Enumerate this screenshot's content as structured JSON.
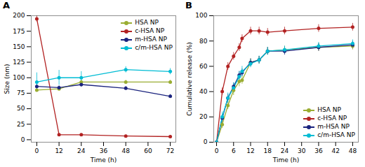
{
  "chart_data": [
    {
      "type": "line",
      "title": "A",
      "xlabel": "Time (h)",
      "ylabel": "Size (nm)",
      "x": [
        0,
        12,
        24,
        48,
        72
      ],
      "xlim": [
        -3,
        75
      ],
      "xticks": [
        0,
        12,
        24,
        36,
        48,
        60,
        72
      ],
      "ylim": [
        -4,
        200
      ],
      "yticks": [
        0,
        25,
        50,
        75,
        100,
        125,
        150,
        175,
        200
      ],
      "grid": false,
      "legend": "upper right",
      "marker": "circle",
      "line_style": "solid",
      "series": [
        {
          "name": "HSA NP",
          "color": "#9aad32",
          "values": [
            80,
            82,
            93,
            93,
            93
          ],
          "yerr": [
            3,
            3,
            4,
            3,
            3
          ]
        },
        {
          "name": "c-HSA NP",
          "color": "#b22222",
          "values": [
            195,
            8,
            8,
            6,
            5
          ],
          "yerr": [
            5,
            1,
            1,
            1,
            1
          ]
        },
        {
          "name": "m-HSA NP",
          "color": "#1a237e",
          "values": [
            86,
            84,
            89,
            83,
            70
          ],
          "yerr": [
            4,
            3,
            4,
            3,
            3
          ]
        },
        {
          "name": "c/m-HSA NP",
          "color": "#00bcd4",
          "values": [
            93,
            100,
            100,
            113,
            110
          ],
          "yerr": [
            15,
            12,
            10,
            5,
            5
          ]
        }
      ]
    },
    {
      "type": "line",
      "title": "B",
      "xlabel": "Time (h)",
      "ylabel": "Cumulative release (%)",
      "x": [
        0,
        2,
        4,
        6,
        8,
        9,
        12,
        15,
        18,
        24,
        36,
        48
      ],
      "xlim": [
        -1,
        50
      ],
      "xticks": [
        0,
        6,
        12,
        18,
        24,
        30,
        36,
        42,
        48
      ],
      "ylim": [
        0,
        100
      ],
      "yticks": [
        0,
        20,
        40,
        60,
        80,
        100
      ],
      "grid": false,
      "legend": "lower right",
      "marker": "circle",
      "line_style": "solid",
      "series": [
        {
          "name": "HSA NP",
          "color": "#9aad32",
          "values": [
            0,
            14,
            29,
            41,
            48,
            49,
            63,
            65,
            72,
            73,
            75,
            76
          ],
          "yerr": [
            0,
            3,
            3,
            4,
            4,
            3,
            3,
            3,
            3,
            3,
            3,
            3
          ]
        },
        {
          "name": "c-HSA NP",
          "color": "#b22222",
          "values": [
            0,
            40,
            60,
            68,
            75,
            82,
            88,
            88,
            87,
            88,
            90,
            91
          ],
          "yerr": [
            0,
            3,
            3,
            3,
            3,
            3,
            3,
            3,
            3,
            3,
            3,
            3
          ]
        },
        {
          "name": "m-HSA NP",
          "color": "#1a237e",
          "values": [
            0,
            19,
            35,
            44,
            53,
            55,
            63,
            65,
            72,
            72,
            75,
            77
          ],
          "yerr": [
            0,
            3,
            3,
            3,
            3,
            3,
            3,
            3,
            3,
            3,
            3,
            3
          ]
        },
        {
          "name": "c/m-HSA NP",
          "color": "#00bcd4",
          "values": [
            0,
            20,
            35,
            43,
            52,
            56,
            62,
            65,
            72,
            73,
            76,
            78
          ],
          "yerr": [
            0,
            4,
            4,
            4,
            4,
            4,
            3,
            3,
            3,
            3,
            3,
            3
          ]
        }
      ]
    }
  ]
}
